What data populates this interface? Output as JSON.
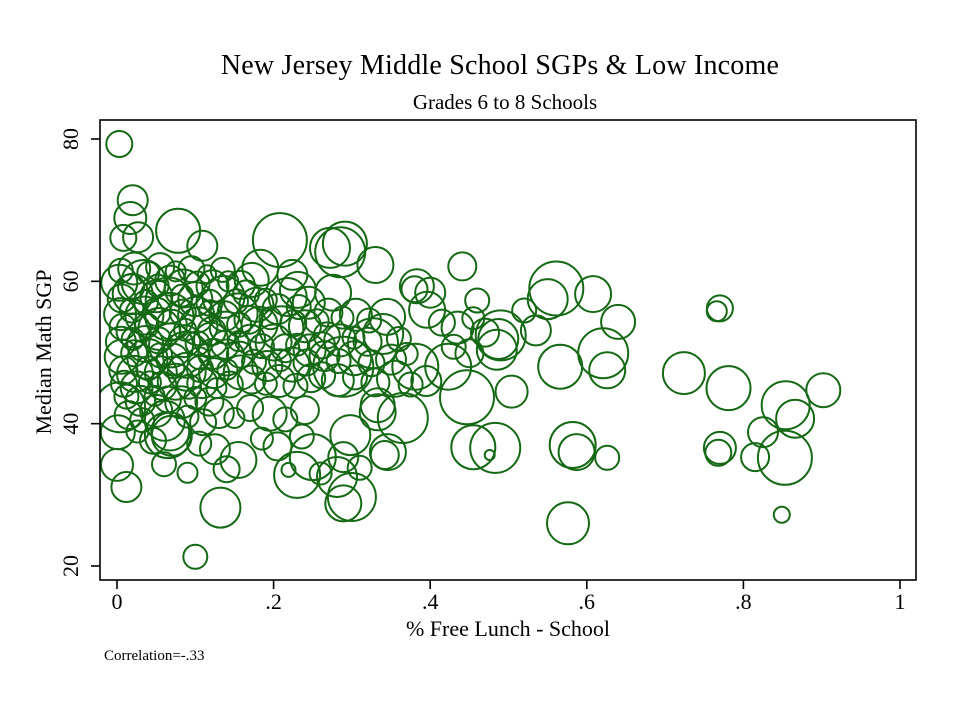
{
  "chart_data": {
    "type": "scatter",
    "title": "New Jersey Middle School SGPs & Low Income",
    "subtitle": "Grades 6 to 8 Schools",
    "xlabel": "% Free Lunch - School",
    "ylabel": "Median Math SGP",
    "note": "Correlation=-.33",
    "xlim": [
      0,
      1
    ],
    "ylim": [
      20,
      80
    ],
    "grid": false,
    "legend": "none",
    "x_ticks": {
      "labels": [
        "0",
        ".2",
        ".4",
        ".6",
        ".8",
        "1"
      ],
      "values": [
        0,
        0.2,
        0.4,
        0.6,
        0.8,
        1
      ]
    },
    "y_ticks": {
      "labels": [
        "20",
        "40",
        "60",
        "80"
      ],
      "values": [
        20,
        40,
        60,
        80
      ]
    },
    "marker": "open-circle",
    "bubble_color": "#156915",
    "point_format": "[pct_free_lunch, median_math_sgp, bubble_radius_px]",
    "points": [
      [
        0.003,
        79.3,
        13
      ],
      [
        0.02,
        71.4,
        15
      ],
      [
        0.017,
        68.9,
        16
      ],
      [
        0.008,
        66.1,
        13
      ],
      [
        0.027,
        66.2,
        15
      ],
      [
        0.078,
        67.1,
        22
      ],
      [
        0.109,
        65.0,
        15
      ],
      [
        0.208,
        65.8,
        27
      ],
      [
        0.272,
        64.7,
        20
      ],
      [
        0.291,
        65.3,
        22
      ],
      [
        0.285,
        64.1,
        25
      ],
      [
        0.183,
        61.9,
        18
      ],
      [
        0.172,
        60.2,
        17
      ],
      [
        0.224,
        60.9,
        15
      ],
      [
        0.231,
        58.8,
        18
      ],
      [
        0.276,
        58.4,
        18
      ],
      [
        0.33,
        62.3,
        18
      ],
      [
        0.441,
        62.1,
        14
      ],
      [
        0.383,
        59.3,
        17
      ],
      [
        0.38,
        58.9,
        13
      ],
      [
        0.561,
        59.0,
        27
      ],
      [
        0.55,
        57.5,
        20
      ],
      [
        0.608,
        58.2,
        18
      ],
      [
        0.64,
        54.3,
        17
      ],
      [
        0.49,
        52.4,
        25
      ],
      [
        0.487,
        51.9,
        20
      ],
      [
        0.485,
        50.4,
        20
      ],
      [
        0.566,
        48.0,
        22
      ],
      [
        0.621,
        49.9,
        25
      ],
      [
        0.626,
        47.5,
        18
      ],
      [
        0.423,
        48.0,
        23
      ],
      [
        0.447,
        43.7,
        27
      ],
      [
        0.504,
        44.5,
        16
      ],
      [
        0.455,
        36.7,
        22
      ],
      [
        0.483,
        36.6,
        25
      ],
      [
        0.476,
        35.6,
        5
      ],
      [
        0.582,
        37.0,
        23
      ],
      [
        0.587,
        36.0,
        18
      ],
      [
        0.626,
        35.2,
        12
      ],
      [
        0.576,
        26.0,
        21
      ],
      [
        0.77,
        56.2,
        13
      ],
      [
        0.766,
        55.8,
        10
      ],
      [
        0.724,
        47.1,
        21
      ],
      [
        0.781,
        45.0,
        22
      ],
      [
        0.854,
        42.6,
        24
      ],
      [
        0.902,
        44.7,
        17
      ],
      [
        0.866,
        40.7,
        19
      ],
      [
        0.825,
        38.8,
        15
      ],
      [
        0.77,
        36.6,
        16
      ],
      [
        0.768,
        35.9,
        13
      ],
      [
        0.815,
        35.3,
        14
      ],
      [
        0.853,
        35.2,
        27
      ],
      [
        0.849,
        27.2,
        8
      ],
      [
        0.001,
        38.8,
        17
      ],
      [
        0.0,
        34.2,
        16
      ],
      [
        0.012,
        31.1,
        15
      ],
      [
        0.065,
        38.4,
        23
      ],
      [
        0.068,
        38.9,
        19
      ],
      [
        0.155,
        34.9,
        18
      ],
      [
        0.23,
        32.8,
        23
      ],
      [
        0.219,
        33.5,
        7
      ],
      [
        0.132,
        28.2,
        20
      ],
      [
        0.1,
        21.3,
        12
      ],
      [
        0.333,
        41.6,
        18
      ],
      [
        0.365,
        40.8,
        25
      ],
      [
        0.298,
        38.4,
        20
      ],
      [
        0.289,
        35.3,
        15
      ],
      [
        0.346,
        36.0,
        18
      ],
      [
        0.342,
        35.6,
        14
      ],
      [
        0.25,
        35.3,
        23
      ],
      [
        0.3,
        29.7,
        24
      ],
      [
        0.289,
        28.8,
        18
      ],
      [
        0.281,
        32.5,
        20
      ],
      [
        0.289,
        48.0,
        30
      ],
      [
        0.327,
        51.3,
        25
      ],
      [
        0.381,
        48.0,
        23
      ],
      [
        0.396,
        56.0,
        18
      ],
      [
        0.333,
        42.6,
        17
      ],
      [
        0.004,
        42.3,
        25
      ],
      [
        0.061,
        40.4,
        20
      ],
      [
        0.07,
        38.3,
        20
      ],
      [
        0.4,
        58.4,
        15
      ],
      [
        0.005,
        61.5,
        12
      ],
      [
        0.022,
        61.8,
        16
      ],
      [
        0.04,
        61.2,
        11
      ],
      [
        0.055,
        62.0,
        14
      ],
      [
        0.075,
        61.4,
        10
      ],
      [
        0.095,
        61.7,
        13
      ],
      [
        0.115,
        61.0,
        9
      ],
      [
        0.135,
        61.6,
        12
      ],
      [
        0.003,
        59.8,
        18
      ],
      [
        0.018,
        59.2,
        13
      ],
      [
        0.034,
        59.9,
        22
      ],
      [
        0.052,
        59.4,
        11
      ],
      [
        0.068,
        60.1,
        15
      ],
      [
        0.085,
        59.0,
        19
      ],
      [
        0.103,
        59.7,
        12
      ],
      [
        0.122,
        59.3,
        16
      ],
      [
        0.142,
        60.0,
        10
      ],
      [
        0.158,
        59.5,
        14
      ],
      [
        0.006,
        57.6,
        14
      ],
      [
        0.02,
        58.2,
        20
      ],
      [
        0.037,
        57.1,
        12
      ],
      [
        0.05,
        57.9,
        16
      ],
      [
        0.066,
        57.3,
        23
      ],
      [
        0.083,
        58.0,
        11
      ],
      [
        0.1,
        57.5,
        17
      ],
      [
        0.118,
        57.0,
        13
      ],
      [
        0.136,
        57.8,
        21
      ],
      [
        0.152,
        57.2,
        12
      ],
      [
        0.004,
        55.4,
        16
      ],
      [
        0.019,
        55.9,
        12
      ],
      [
        0.035,
        55.2,
        19
      ],
      [
        0.051,
        55.7,
        14
      ],
      [
        0.067,
        55.0,
        24
      ],
      [
        0.084,
        55.6,
        13
      ],
      [
        0.101,
        55.3,
        18
      ],
      [
        0.119,
        55.8,
        11
      ],
      [
        0.137,
        55.1,
        15
      ],
      [
        0.154,
        55.5,
        20
      ],
      [
        0.007,
        53.6,
        13
      ],
      [
        0.021,
        53.1,
        17
      ],
      [
        0.038,
        53.8,
        12
      ],
      [
        0.054,
        53.3,
        21
      ],
      [
        0.07,
        53.9,
        15
      ],
      [
        0.087,
        53.2,
        11
      ],
      [
        0.104,
        53.7,
        19
      ],
      [
        0.121,
        53.0,
        14
      ],
      [
        0.139,
        53.5,
        16
      ],
      [
        0.156,
        53.9,
        12
      ],
      [
        0.005,
        51.5,
        15
      ],
      [
        0.02,
        51.9,
        11
      ],
      [
        0.036,
        51.2,
        18
      ],
      [
        0.053,
        51.7,
        13
      ],
      [
        0.069,
        51.0,
        22
      ],
      [
        0.086,
        51.6,
        16
      ],
      [
        0.103,
        51.3,
        12
      ],
      [
        0.12,
        51.8,
        17
      ],
      [
        0.138,
        51.1,
        14
      ],
      [
        0.155,
        51.6,
        10
      ],
      [
        0.006,
        49.4,
        17
      ],
      [
        0.022,
        49.9,
        13
      ],
      [
        0.039,
        49.1,
        20
      ],
      [
        0.055,
        49.6,
        12
      ],
      [
        0.071,
        49.0,
        16
      ],
      [
        0.088,
        49.7,
        23
      ],
      [
        0.105,
        49.2,
        11
      ],
      [
        0.123,
        49.8,
        15
      ],
      [
        0.14,
        49.3,
        18
      ],
      [
        0.157,
        49.7,
        13
      ],
      [
        0.008,
        47.5,
        14
      ],
      [
        0.023,
        47.0,
        18
      ],
      [
        0.04,
        47.8,
        12
      ],
      [
        0.056,
        47.2,
        16
      ],
      [
        0.072,
        47.9,
        11
      ],
      [
        0.089,
        47.3,
        19
      ],
      [
        0.106,
        47.7,
        13
      ],
      [
        0.124,
        47.1,
        15
      ],
      [
        0.141,
        47.6,
        10
      ],
      [
        0.158,
        47.2,
        17
      ],
      [
        0.009,
        45.6,
        13
      ],
      [
        0.025,
        45.1,
        16
      ],
      [
        0.042,
        45.8,
        11
      ],
      [
        0.058,
        45.3,
        14
      ],
      [
        0.075,
        45.9,
        18
      ],
      [
        0.092,
        45.2,
        12
      ],
      [
        0.109,
        45.7,
        15
      ],
      [
        0.127,
        45.0,
        10
      ],
      [
        0.144,
        45.5,
        13
      ],
      [
        0.012,
        43.8,
        12
      ],
      [
        0.03,
        43.2,
        15
      ],
      [
        0.048,
        43.9,
        10
      ],
      [
        0.065,
        43.4,
        13
      ],
      [
        0.082,
        43.0,
        16
      ],
      [
        0.1,
        43.6,
        11
      ],
      [
        0.118,
        43.1,
        14
      ],
      [
        0.165,
        58.3,
        13
      ],
      [
        0.178,
        56.7,
        17
      ],
      [
        0.19,
        57.4,
        11
      ],
      [
        0.205,
        56.1,
        15
      ],
      [
        0.218,
        57.8,
        19
      ],
      [
        0.232,
        56.4,
        12
      ],
      [
        0.245,
        57.0,
        16
      ],
      [
        0.168,
        54.6,
        14
      ],
      [
        0.182,
        53.9,
        18
      ],
      [
        0.196,
        54.8,
        11
      ],
      [
        0.21,
        53.4,
        22
      ],
      [
        0.225,
        54.1,
        13
      ],
      [
        0.24,
        53.7,
        16
      ],
      [
        0.255,
        54.4,
        12
      ],
      [
        0.17,
        51.8,
        15
      ],
      [
        0.185,
        50.9,
        12
      ],
      [
        0.2,
        51.4,
        18
      ],
      [
        0.215,
        50.6,
        14
      ],
      [
        0.23,
        51.1,
        11
      ],
      [
        0.246,
        50.3,
        16
      ],
      [
        0.262,
        51.0,
        13
      ],
      [
        0.175,
        48.7,
        12
      ],
      [
        0.192,
        48.1,
        15
      ],
      [
        0.208,
        48.9,
        11
      ],
      [
        0.224,
        48.3,
        17
      ],
      [
        0.242,
        48.6,
        13
      ],
      [
        0.172,
        46.2,
        14
      ],
      [
        0.19,
        45.6,
        11
      ],
      [
        0.207,
        46.0,
        16
      ],
      [
        0.228,
        45.3,
        12
      ],
      [
        0.248,
        46.4,
        14
      ],
      [
        0.27,
        55.6,
        14
      ],
      [
        0.288,
        54.9,
        11
      ],
      [
        0.305,
        55.3,
        16
      ],
      [
        0.322,
        54.5,
        12
      ],
      [
        0.345,
        55.0,
        18
      ],
      [
        0.268,
        52.4,
        13
      ],
      [
        0.285,
        51.7,
        16
      ],
      [
        0.302,
        52.1,
        11
      ],
      [
        0.32,
        51.5,
        14
      ],
      [
        0.34,
        52.6,
        20
      ],
      [
        0.36,
        51.9,
        12
      ],
      [
        0.265,
        49.5,
        15
      ],
      [
        0.283,
        48.8,
        12
      ],
      [
        0.303,
        49.2,
        17
      ],
      [
        0.325,
        48.5,
        13
      ],
      [
        0.35,
        49.0,
        15
      ],
      [
        0.37,
        49.8,
        11
      ],
      [
        0.262,
        46.8,
        13
      ],
      [
        0.282,
        46.1,
        16
      ],
      [
        0.304,
        46.5,
        12
      ],
      [
        0.33,
        45.8,
        14
      ],
      [
        0.355,
        46.3,
        18
      ],
      [
        0.375,
        45.5,
        12
      ],
      [
        0.395,
        46.0,
        15
      ],
      [
        0.415,
        54.2,
        13
      ],
      [
        0.435,
        53.5,
        16
      ],
      [
        0.455,
        54.8,
        11
      ],
      [
        0.47,
        52.8,
        14
      ],
      [
        0.52,
        55.9,
        12
      ],
      [
        0.535,
        53.1,
        15
      ],
      [
        0.46,
        57.3,
        12
      ],
      [
        0.43,
        50.8,
        12
      ],
      [
        0.45,
        49.9,
        14
      ],
      [
        0.015,
        41.2,
        14
      ],
      [
        0.032,
        40.5,
        12
      ],
      [
        0.05,
        41.8,
        16
      ],
      [
        0.09,
        41.0,
        11
      ],
      [
        0.11,
        40.2,
        13
      ],
      [
        0.13,
        41.5,
        15
      ],
      [
        0.15,
        40.8,
        10
      ],
      [
        0.17,
        42.2,
        13
      ],
      [
        0.195,
        41.4,
        17
      ],
      [
        0.215,
        40.6,
        12
      ],
      [
        0.24,
        41.9,
        14
      ],
      [
        0.026,
        38.9,
        11
      ],
      [
        0.046,
        37.6,
        13
      ],
      [
        0.105,
        37.2,
        12
      ],
      [
        0.125,
        36.4,
        15
      ],
      [
        0.185,
        37.9,
        11
      ],
      [
        0.205,
        36.8,
        14
      ],
      [
        0.236,
        38.2,
        12
      ],
      [
        0.06,
        34.3,
        12
      ],
      [
        0.09,
        33.1,
        10
      ],
      [
        0.14,
        33.6,
        13
      ],
      [
        0.26,
        33.0,
        11
      ],
      [
        0.31,
        33.8,
        12
      ]
    ]
  }
}
